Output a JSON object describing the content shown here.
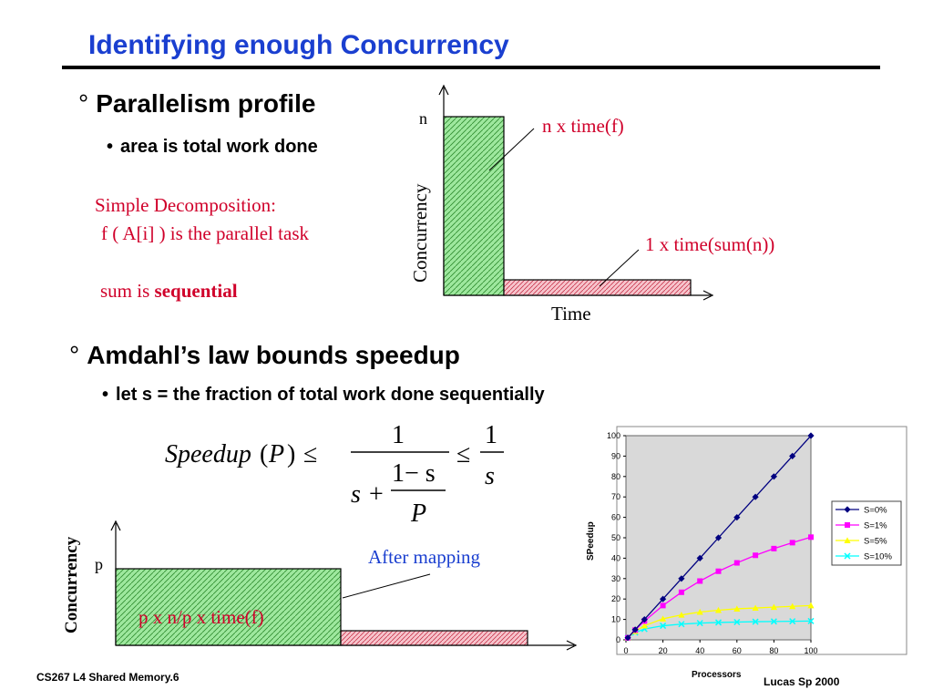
{
  "slide": {
    "title": "Identifying enough Concurrency",
    "bullet1": {
      "label": "Parallelism profile",
      "sub": "area is total work done"
    },
    "bullet2": {
      "label": "Amdahl’s law bounds speedup",
      "sub": "let s = the fraction of total work done sequentially"
    },
    "notes": {
      "line1": "Simple Decomposition:",
      "line2": "f ( A[i] ) is the parallel task",
      "line3_prefix": "sum is ",
      "line3_bold": "sequential"
    },
    "footer_left": "CS267  L4 Shared Memory.6",
    "footer_right": "Lucas Sp 2000"
  },
  "profile_diagram": {
    "y_label": "Concurrency",
    "x_label": "Time",
    "y_tick": "n",
    "annot_parallel": "n x time(f)",
    "annot_sequential": "1 x time(sum(n))"
  },
  "mapping_diagram": {
    "y_label": "Concurrency",
    "y_tick": "p",
    "annot_parallel": "p x n/p x time(f)",
    "after_mapping": "After mapping"
  },
  "equation": {
    "lhs": "Speedup",
    "arg": "P",
    "le": "≤",
    "num": "1",
    "s": "s",
    "plus": "+",
    "one_minus_s": "1− s",
    "P": "P",
    "rhs_num": "1",
    "rhs_den": "s"
  },
  "colors": {
    "title": "#1a3fd0",
    "note_red": "#d0002a",
    "parallel_fill": "#9ee89e",
    "sequential_fill": "#f4b6c0",
    "plot_bg": "#d9d9d9",
    "s0": "#000080",
    "s1": "#ff00ff",
    "s5": "#ffff00",
    "s10": "#00ffff"
  },
  "chart_data": {
    "type": "line",
    "title": "",
    "xlabel": "Processors",
    "ylabel": "SPeedup",
    "xlim": [
      0,
      100
    ],
    "ylim": [
      0,
      100
    ],
    "x_ticks": [
      "0",
      "20",
      "40",
      "60",
      "80",
      "100"
    ],
    "y_ticks": [
      "0",
      "10",
      "20",
      "30",
      "40",
      "50",
      "60",
      "70",
      "80",
      "90",
      "100"
    ],
    "legend_position": "right",
    "grid": false,
    "x": [
      1,
      5,
      10,
      20,
      30,
      40,
      50,
      60,
      70,
      80,
      90,
      100
    ],
    "series": [
      {
        "name": "S=0%",
        "marker": "diamond",
        "color": "#000080",
        "values": [
          1,
          5,
          10,
          20,
          30,
          40,
          50,
          60,
          70,
          80,
          90,
          100
        ]
      },
      {
        "name": "S=1%",
        "marker": "square",
        "color": "#ff00ff",
        "values": [
          1,
          4.8,
          9.2,
          16.8,
          23.3,
          28.8,
          33.6,
          37.7,
          41.4,
          44.7,
          47.6,
          50.3
        ]
      },
      {
        "name": "S=5%",
        "marker": "triangle",
        "color": "#ffff00",
        "values": [
          1,
          4.2,
          6.9,
          10.3,
          12.2,
          13.6,
          14.5,
          15.2,
          15.6,
          16.0,
          16.4,
          16.8
        ]
      },
      {
        "name": "S=10%",
        "marker": "x",
        "color": "#00ffff",
        "values": [
          1,
          3.6,
          5.3,
          6.9,
          7.7,
          8.2,
          8.5,
          8.7,
          8.9,
          9.0,
          9.1,
          9.2
        ]
      }
    ]
  }
}
